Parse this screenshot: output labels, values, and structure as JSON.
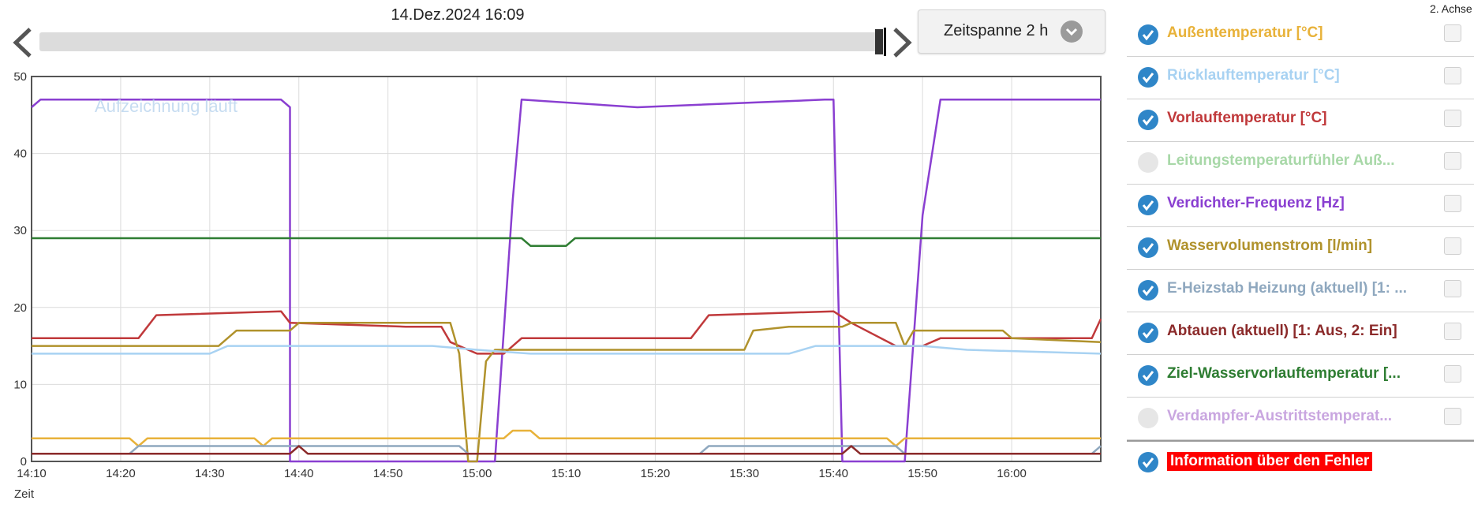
{
  "header": {
    "timestamp": "14.Dez.2024 16:09",
    "timespan_label": "Zeitspanne 2 h",
    "second_axis_label": "2. Achse",
    "prev_icon": "chevron-left-icon",
    "next_icon": "chevron-right-icon",
    "dropdown_icon": "chevron-down-icon"
  },
  "watermark": "Aufzeichnung läuft",
  "legend": [
    {
      "label": "Außentemperatur [°C]",
      "color": "#e8b23a",
      "checked": true
    },
    {
      "label": "Rücklauftemperatur [°C]",
      "color": "#a8d2f2",
      "checked": true
    },
    {
      "label": "Vorlauftemperatur [°C]",
      "color": "#c0393b",
      "checked": true
    },
    {
      "label": "Leitungstemperaturfühler Auß...",
      "color": "#a8d8a8",
      "checked": false
    },
    {
      "label": "Verdichter-Frequenz [Hz]",
      "color": "#8a3fd1",
      "checked": true
    },
    {
      "label": "Wasservolumenstrom [l/min]",
      "color": "#b0922c",
      "checked": true
    },
    {
      "label": "E-Heizstab Heizung (aktuell) [1: ...",
      "color": "#8fa8bf",
      "checked": true
    },
    {
      "label": "Abtauen (aktuell) [1: Aus, 2: Ein]",
      "color": "#8b2a2a",
      "checked": true
    },
    {
      "label": "Ziel-Wasservorlauftemperatur [...",
      "color": "#2e7d32",
      "checked": true
    },
    {
      "label": "Verdampfer-Austrittstemperat...",
      "color": "#c9a6e0",
      "checked": false
    },
    {
      "label": "Information über den Fehler",
      "color": "#ff0000",
      "checked": true
    }
  ],
  "chart_data": {
    "type": "line",
    "xlabel": "Zeit",
    "ylabel": "",
    "x_unit": "minutes",
    "xlim": [
      "14:10",
      "16:10"
    ],
    "ylim": [
      0,
      50
    ],
    "yticks": [
      "0",
      "10",
      "20",
      "30",
      "40",
      "50"
    ],
    "xticks": [
      "14:10",
      "14:20",
      "14:30",
      "14:40",
      "14:50",
      "15:00",
      "15:10",
      "15:20",
      "15:30",
      "15:40",
      "15:50",
      "16:00"
    ],
    "grid": true,
    "series": [
      {
        "name": "Verdichter-Frequenz [Hz]",
        "color": "#8a3fd1",
        "points": [
          [
            "14:10",
            46
          ],
          [
            "14:11",
            47
          ],
          [
            "14:38",
            47
          ],
          [
            "14:39",
            46
          ],
          [
            "14:39",
            0
          ],
          [
            "15:02",
            0
          ],
          [
            "15:04",
            34
          ],
          [
            "15:05",
            47
          ],
          [
            "15:18",
            46
          ],
          [
            "15:39",
            47
          ],
          [
            "15:40",
            47
          ],
          [
            "15:41",
            0
          ],
          [
            "15:48",
            0
          ],
          [
            "15:50",
            32
          ],
          [
            "15:52",
            47
          ],
          [
            "16:10",
            47
          ]
        ]
      },
      {
        "name": "Ziel-Wasservorlauftemperatur [...",
        "color": "#2e7d32",
        "points": [
          [
            "14:10",
            29
          ],
          [
            "15:05",
            29
          ],
          [
            "15:06",
            28
          ],
          [
            "15:10",
            28
          ],
          [
            "15:11",
            29
          ],
          [
            "16:10",
            29
          ]
        ]
      },
      {
        "name": "Vorlauftemperatur [°C]",
        "color": "#c0393b",
        "points": [
          [
            "14:10",
            16
          ],
          [
            "14:22",
            16
          ],
          [
            "14:24",
            19
          ],
          [
            "14:38",
            19.5
          ],
          [
            "14:39",
            18
          ],
          [
            "14:52",
            17.5
          ],
          [
            "14:56",
            17.5
          ],
          [
            "14:57",
            15.5
          ],
          [
            "15:00",
            14
          ],
          [
            "15:03",
            14
          ],
          [
            "15:05",
            16
          ],
          [
            "15:24",
            16
          ],
          [
            "15:26",
            19
          ],
          [
            "15:40",
            19.5
          ],
          [
            "15:42",
            18
          ],
          [
            "15:47",
            15
          ],
          [
            "15:50",
            15
          ],
          [
            "15:52",
            16
          ],
          [
            "16:09",
            16
          ],
          [
            "16:10",
            18.5
          ]
        ]
      },
      {
        "name": "Wasservolumenstrom [l/min]",
        "color": "#b0922c",
        "points": [
          [
            "14:10",
            15
          ],
          [
            "14:31",
            15
          ],
          [
            "14:33",
            17
          ],
          [
            "14:39",
            17
          ],
          [
            "14:40",
            18
          ],
          [
            "14:57",
            18
          ],
          [
            "14:58",
            14
          ],
          [
            "14:59",
            0
          ],
          [
            "15:00",
            0
          ],
          [
            "15:01",
            13
          ],
          [
            "15:02",
            14.5
          ],
          [
            "15:30",
            14.5
          ],
          [
            "15:31",
            17
          ],
          [
            "15:35",
            17.5
          ],
          [
            "15:41",
            17.5
          ],
          [
            "15:42",
            18
          ],
          [
            "15:47",
            18
          ],
          [
            "15:48",
            15
          ],
          [
            "15:49",
            17
          ],
          [
            "15:59",
            17
          ],
          [
            "16:00",
            16
          ],
          [
            "16:10",
            15.5
          ]
        ]
      },
      {
        "name": "Rücklauftemperatur [°C]",
        "color": "#a8d2f2",
        "points": [
          [
            "14:10",
            14
          ],
          [
            "14:30",
            14
          ],
          [
            "14:32",
            15
          ],
          [
            "14:40",
            15
          ],
          [
            "14:55",
            15
          ],
          [
            "15:00",
            14.5
          ],
          [
            "15:06",
            14
          ],
          [
            "15:35",
            14
          ],
          [
            "15:38",
            15
          ],
          [
            "15:50",
            15
          ],
          [
            "15:55",
            14.5
          ],
          [
            "16:10",
            14
          ]
        ]
      },
      {
        "name": "Außentemperatur [°C]",
        "color": "#e8b23a",
        "points": [
          [
            "14:10",
            3
          ],
          [
            "14:21",
            3
          ],
          [
            "14:22",
            2
          ],
          [
            "14:23",
            3
          ],
          [
            "14:35",
            3
          ],
          [
            "14:36",
            2
          ],
          [
            "14:37",
            3
          ],
          [
            "15:03",
            3
          ],
          [
            "15:04",
            4
          ],
          [
            "15:06",
            4
          ],
          [
            "15:07",
            3
          ],
          [
            "15:46",
            3
          ],
          [
            "15:47",
            2
          ],
          [
            "15:48",
            3
          ],
          [
            "16:10",
            3
          ]
        ]
      },
      {
        "name": "E-Heizstab Heizung (aktuell) [1: ...",
        "color": "#8fa8bf",
        "points": [
          [
            "14:10",
            1
          ],
          [
            "14:21",
            1
          ],
          [
            "14:22",
            2
          ],
          [
            "14:58",
            2
          ],
          [
            "14:59",
            1
          ],
          [
            "15:25",
            1
          ],
          [
            "15:26",
            2
          ],
          [
            "15:47",
            2
          ],
          [
            "15:48",
            1
          ],
          [
            "16:09",
            1
          ],
          [
            "16:10",
            2
          ]
        ]
      },
      {
        "name": "Abtauen (aktuell) [1: Aus, 2: Ein]",
        "color": "#8b2a2a",
        "points": [
          [
            "14:10",
            1
          ],
          [
            "14:39",
            1
          ],
          [
            "14:40",
            2
          ],
          [
            "14:41",
            1
          ],
          [
            "15:41",
            1
          ],
          [
            "15:42",
            2
          ],
          [
            "15:43",
            1
          ],
          [
            "16:10",
            1
          ]
        ]
      }
    ]
  }
}
